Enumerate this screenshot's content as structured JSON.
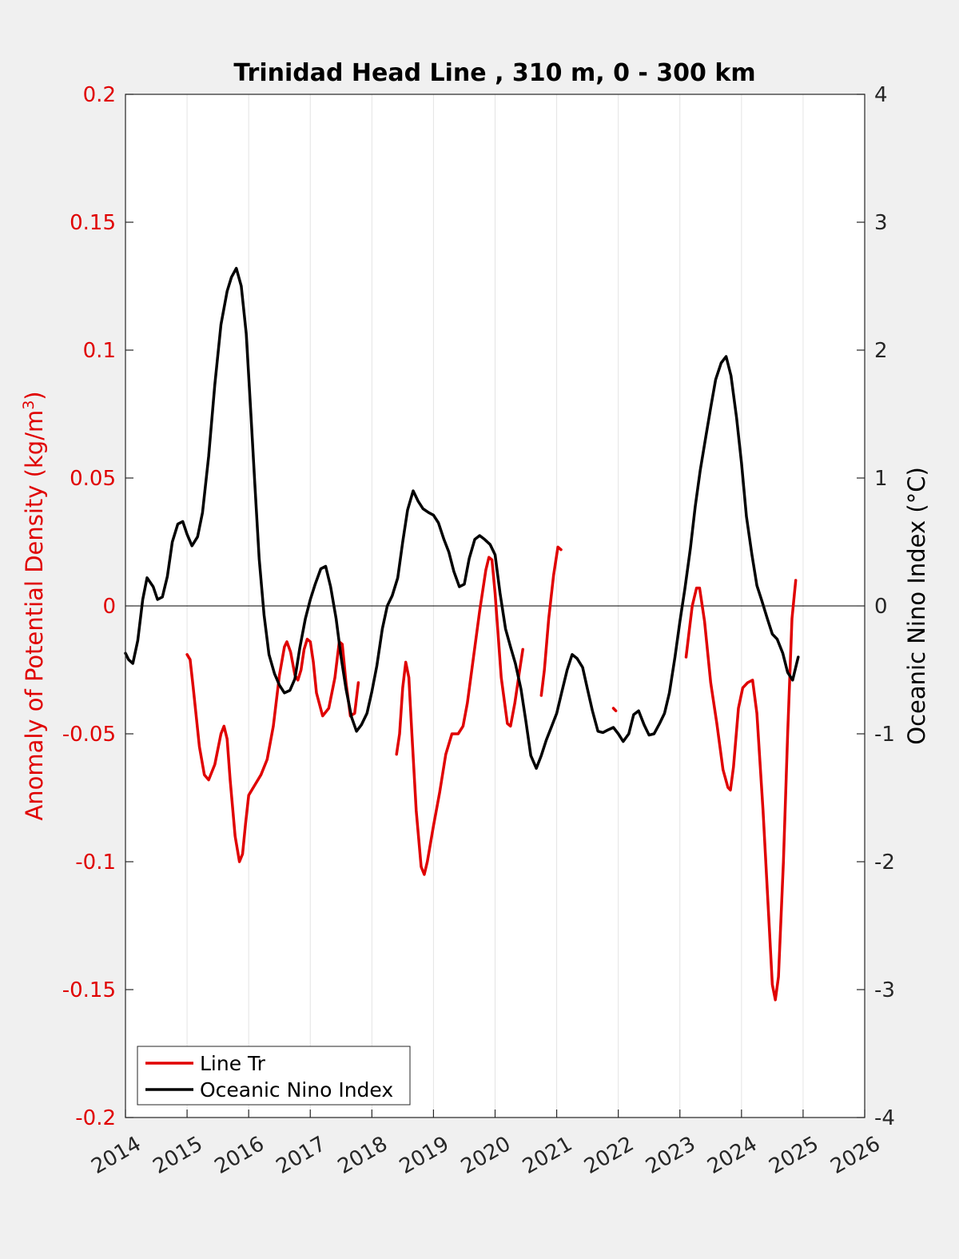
{
  "chart_data": {
    "type": "line",
    "title": "Trinidad Head Line , 310 m, 0 - 300 km",
    "xlabel": "",
    "ylabel_left": "Anomaly of Potential Density (kg/m",
    "ylabel_left_sup": "3",
    "ylabel_left_close": ")",
    "ylabel_right": "Oceanic Nino Index (°C)",
    "xlim": [
      2014,
      2026
    ],
    "ylim_left": [
      -0.2,
      0.2
    ],
    "ylim_right": [
      -4,
      4
    ],
    "x_ticks": [
      "2014",
      "2015",
      "2016",
      "2017",
      "2018",
      "2019",
      "2020",
      "2021",
      "2022",
      "2023",
      "2024",
      "2025",
      "2026"
    ],
    "y_ticks_left": [
      "0.2",
      "0.15",
      "0.1",
      "0.05",
      "0",
      "-0.05",
      "-0.1",
      "-0.15",
      "-0.2"
    ],
    "y_ticks_right": [
      "4",
      "3",
      "2",
      "1",
      "0",
      "-1",
      "-2",
      "-3",
      "-4"
    ],
    "grid": "vertical",
    "legend_position": "bottom-left",
    "colors": {
      "left_axis": "#e00000",
      "line_tr": "#e00000",
      "oni": "#000000"
    },
    "series": [
      {
        "name": "Line Tr",
        "axis": "left",
        "segments": [
          [
            [
              2015.0,
              -0.019
            ],
            [
              2015.05,
              -0.021
            ],
            [
              2015.1,
              -0.032
            ],
            [
              2015.2,
              -0.055
            ],
            [
              2015.28,
              -0.066
            ],
            [
              2015.35,
              -0.068
            ],
            [
              2015.45,
              -0.062
            ],
            [
              2015.55,
              -0.05
            ],
            [
              2015.6,
              -0.047
            ],
            [
              2015.65,
              -0.052
            ],
            [
              2015.7,
              -0.068
            ],
            [
              2015.78,
              -0.09
            ],
            [
              2015.85,
              -0.1
            ],
            [
              2015.9,
              -0.097
            ],
            [
              2015.95,
              -0.085
            ],
            [
              2016.0,
              -0.074
            ],
            [
              2016.1,
              -0.07
            ],
            [
              2016.2,
              -0.066
            ],
            [
              2016.3,
              -0.06
            ],
            [
              2016.4,
              -0.047
            ],
            [
              2016.5,
              -0.027
            ],
            [
              2016.58,
              -0.016
            ],
            [
              2016.62,
              -0.014
            ],
            [
              2016.68,
              -0.018
            ],
            [
              2016.75,
              -0.027
            ],
            [
              2016.8,
              -0.029
            ],
            [
              2016.85,
              -0.025
            ],
            [
              2016.9,
              -0.017
            ],
            [
              2016.95,
              -0.013
            ],
            [
              2017.0,
              -0.014
            ],
            [
              2017.05,
              -0.022
            ],
            [
              2017.1,
              -0.034
            ],
            [
              2017.2,
              -0.043
            ],
            [
              2017.3,
              -0.04
            ],
            [
              2017.4,
              -0.028
            ],
            [
              2017.47,
              -0.014
            ],
            [
              2017.52,
              -0.015
            ],
            [
              2017.58,
              -0.03
            ],
            [
              2017.65,
              -0.043
            ],
            [
              2017.72,
              -0.042
            ],
            [
              2017.78,
              -0.03
            ]
          ],
          [
            [
              2018.4,
              -0.058
            ],
            [
              2018.45,
              -0.05
            ],
            [
              2018.5,
              -0.032
            ],
            [
              2018.55,
              -0.022
            ],
            [
              2018.6,
              -0.028
            ],
            [
              2018.65,
              -0.05
            ],
            [
              2018.72,
              -0.08
            ],
            [
              2018.8,
              -0.102
            ],
            [
              2018.85,
              -0.105
            ],
            [
              2018.9,
              -0.1
            ],
            [
              2019.0,
              -0.086
            ],
            [
              2019.1,
              -0.073
            ],
            [
              2019.2,
              -0.058
            ],
            [
              2019.3,
              -0.05
            ],
            [
              2019.4,
              -0.05
            ],
            [
              2019.48,
              -0.047
            ],
            [
              2019.55,
              -0.038
            ],
            [
              2019.65,
              -0.02
            ],
            [
              2019.75,
              -0.002
            ],
            [
              2019.85,
              0.014
            ],
            [
              2019.9,
              0.019
            ],
            [
              2019.95,
              0.018
            ],
            [
              2020.0,
              0.005
            ],
            [
              2020.1,
              -0.028
            ],
            [
              2020.2,
              -0.046
            ],
            [
              2020.25,
              -0.047
            ],
            [
              2020.32,
              -0.038
            ],
            [
              2020.4,
              -0.025
            ],
            [
              2020.45,
              -0.017
            ]
          ],
          [
            [
              2020.75,
              -0.035
            ],
            [
              2020.8,
              -0.025
            ],
            [
              2020.87,
              -0.005
            ],
            [
              2020.95,
              0.012
            ],
            [
              2021.02,
              0.023
            ],
            [
              2021.07,
              0.022
            ]
          ],
          [
            [
              2021.92,
              -0.04
            ],
            [
              2021.96,
              -0.041
            ]
          ],
          [
            [
              2023.1,
              -0.02
            ],
            [
              2023.15,
              -0.01
            ],
            [
              2023.2,
              0.0
            ],
            [
              2023.27,
              0.007
            ],
            [
              2023.32,
              0.007
            ],
            [
              2023.4,
              -0.006
            ],
            [
              2023.5,
              -0.03
            ],
            [
              2023.6,
              -0.046
            ],
            [
              2023.7,
              -0.064
            ],
            [
              2023.78,
              -0.071
            ],
            [
              2023.82,
              -0.072
            ],
            [
              2023.87,
              -0.063
            ],
            [
              2023.95,
              -0.04
            ],
            [
              2024.02,
              -0.032
            ],
            [
              2024.1,
              -0.03
            ],
            [
              2024.18,
              -0.029
            ],
            [
              2024.25,
              -0.042
            ],
            [
              2024.35,
              -0.08
            ],
            [
              2024.45,
              -0.125
            ],
            [
              2024.5,
              -0.148
            ],
            [
              2024.55,
              -0.154
            ],
            [
              2024.6,
              -0.145
            ],
            [
              2024.68,
              -0.1
            ],
            [
              2024.75,
              -0.05
            ],
            [
              2024.82,
              -0.005
            ],
            [
              2024.88,
              0.01
            ]
          ]
        ]
      },
      {
        "name": "Oceanic Nino Index",
        "axis": "right",
        "segments": [
          [
            [
              2014.0,
              -0.37
            ],
            [
              2014.05,
              -0.42
            ],
            [
              2014.12,
              -0.45
            ],
            [
              2014.2,
              -0.27
            ],
            [
              2014.28,
              0.05
            ],
            [
              2014.35,
              0.22
            ],
            [
              2014.45,
              0.15
            ],
            [
              2014.52,
              0.05
            ],
            [
              2014.6,
              0.07
            ],
            [
              2014.68,
              0.23
            ],
            [
              2014.76,
              0.5
            ],
            [
              2014.85,
              0.64
            ],
            [
              2014.93,
              0.66
            ],
            [
              2015.0,
              0.56
            ],
            [
              2015.08,
              0.47
            ],
            [
              2015.17,
              0.54
            ],
            [
              2015.25,
              0.73
            ],
            [
              2015.35,
              1.17
            ],
            [
              2015.45,
              1.73
            ],
            [
              2015.55,
              2.2
            ],
            [
              2015.65,
              2.46
            ],
            [
              2015.72,
              2.57
            ],
            [
              2015.8,
              2.64
            ],
            [
              2015.88,
              2.5
            ],
            [
              2015.96,
              2.13
            ],
            [
              2016.03,
              1.55
            ],
            [
              2016.1,
              0.95
            ],
            [
              2016.17,
              0.37
            ],
            [
              2016.25,
              -0.07
            ],
            [
              2016.33,
              -0.38
            ],
            [
              2016.42,
              -0.53
            ],
            [
              2016.5,
              -0.62
            ],
            [
              2016.58,
              -0.68
            ],
            [
              2016.67,
              -0.66
            ],
            [
              2016.75,
              -0.57
            ],
            [
              2016.83,
              -0.33
            ],
            [
              2016.92,
              -0.1
            ],
            [
              2017.0,
              0.05
            ],
            [
              2017.08,
              0.17
            ],
            [
              2017.17,
              0.29
            ],
            [
              2017.25,
              0.31
            ],
            [
              2017.33,
              0.15
            ],
            [
              2017.42,
              -0.1
            ],
            [
              2017.5,
              -0.4
            ],
            [
              2017.58,
              -0.65
            ],
            [
              2017.67,
              -0.87
            ],
            [
              2017.75,
              -0.98
            ],
            [
              2017.83,
              -0.93
            ],
            [
              2017.92,
              -0.84
            ],
            [
              2018.0,
              -0.67
            ],
            [
              2018.08,
              -0.47
            ],
            [
              2018.17,
              -0.18
            ],
            [
              2018.25,
              0.0
            ],
            [
              2018.33,
              0.08
            ],
            [
              2018.42,
              0.22
            ],
            [
              2018.5,
              0.5
            ],
            [
              2018.58,
              0.75
            ],
            [
              2018.67,
              0.9
            ],
            [
              2018.75,
              0.82
            ],
            [
              2018.83,
              0.76
            ],
            [
              2018.92,
              0.73
            ],
            [
              2019.0,
              0.71
            ],
            [
              2019.08,
              0.65
            ],
            [
              2019.17,
              0.52
            ],
            [
              2019.25,
              0.42
            ],
            [
              2019.33,
              0.27
            ],
            [
              2019.42,
              0.15
            ],
            [
              2019.5,
              0.17
            ],
            [
              2019.58,
              0.37
            ],
            [
              2019.67,
              0.52
            ],
            [
              2019.75,
              0.55
            ],
            [
              2019.83,
              0.52
            ],
            [
              2019.92,
              0.48
            ],
            [
              2020.0,
              0.4
            ],
            [
              2020.08,
              0.1
            ],
            [
              2020.17,
              -0.18
            ],
            [
              2020.25,
              -0.32
            ],
            [
              2020.33,
              -0.45
            ],
            [
              2020.42,
              -0.65
            ],
            [
              2020.5,
              -0.9
            ],
            [
              2020.58,
              -1.17
            ],
            [
              2020.67,
              -1.27
            ],
            [
              2020.75,
              -1.17
            ],
            [
              2020.83,
              -1.05
            ],
            [
              2020.92,
              -0.94
            ],
            [
              2021.0,
              -0.84
            ],
            [
              2021.08,
              -0.68
            ],
            [
              2021.17,
              -0.5
            ],
            [
              2021.25,
              -0.38
            ],
            [
              2021.33,
              -0.41
            ],
            [
              2021.42,
              -0.48
            ],
            [
              2021.5,
              -0.65
            ],
            [
              2021.58,
              -0.82
            ],
            [
              2021.67,
              -0.98
            ],
            [
              2021.75,
              -0.99
            ],
            [
              2021.83,
              -0.97
            ],
            [
              2021.92,
              -0.95
            ],
            [
              2022.0,
              -1.0
            ],
            [
              2022.08,
              -1.06
            ],
            [
              2022.17,
              -1.0
            ],
            [
              2022.25,
              -0.85
            ],
            [
              2022.33,
              -0.82
            ],
            [
              2022.42,
              -0.93
            ],
            [
              2022.5,
              -1.01
            ],
            [
              2022.58,
              -1.0
            ],
            [
              2022.67,
              -0.92
            ],
            [
              2022.75,
              -0.84
            ],
            [
              2022.83,
              -0.68
            ],
            [
              2022.92,
              -0.4
            ],
            [
              2023.0,
              -0.12
            ],
            [
              2023.08,
              0.13
            ],
            [
              2023.17,
              0.45
            ],
            [
              2023.25,
              0.78
            ],
            [
              2023.33,
              1.06
            ],
            [
              2023.42,
              1.32
            ],
            [
              2023.5,
              1.55
            ],
            [
              2023.58,
              1.77
            ],
            [
              2023.67,
              1.9
            ],
            [
              2023.75,
              1.95
            ],
            [
              2023.83,
              1.8
            ],
            [
              2023.92,
              1.47
            ],
            [
              2024.0,
              1.12
            ],
            [
              2024.08,
              0.7
            ],
            [
              2024.17,
              0.4
            ],
            [
              2024.25,
              0.16
            ],
            [
              2024.33,
              0.04
            ],
            [
              2024.42,
              -0.1
            ],
            [
              2024.5,
              -0.22
            ],
            [
              2024.58,
              -0.26
            ],
            [
              2024.67,
              -0.37
            ],
            [
              2024.75,
              -0.52
            ],
            [
              2024.83,
              -0.58
            ],
            [
              2024.92,
              -0.4
            ]
          ]
        ]
      }
    ]
  }
}
